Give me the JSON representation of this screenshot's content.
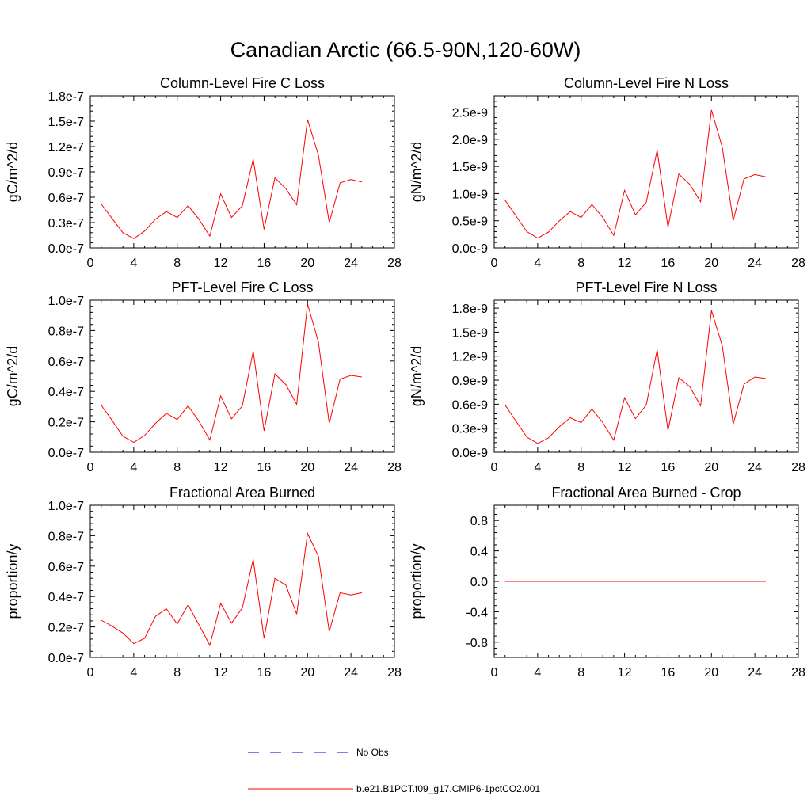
{
  "title": "Canadian Arctic (66.5-90N,120-60W)",
  "legend": {
    "entries": [
      {
        "label": "No Obs",
        "color": "#0000cc",
        "dashed": true
      },
      {
        "label": "b.e21.B1PCT.f09_g17.CMIP6-1pctCO2.001",
        "color": "#ff0000",
        "dashed": false
      }
    ]
  },
  "chart_data": [
    {
      "type": "line",
      "title": "Column-Level Fire C Loss",
      "ylabel": "gC/m^2/d",
      "xlim": [
        0,
        28
      ],
      "ylim": [
        0,
        1.8e-07
      ],
      "xticks": [
        0,
        4,
        8,
        12,
        16,
        20,
        24,
        28
      ],
      "xtick_labels": [
        "0",
        "4",
        "8",
        "12",
        "16",
        "20",
        "24",
        "28"
      ],
      "yticks": [
        0,
        3e-08,
        6e-08,
        9e-08,
        1.2e-07,
        1.5e-07,
        1.8e-07
      ],
      "ytick_labels": [
        "0.0e-7",
        "0.3e-7",
        "0.6e-7",
        "0.9e-7",
        "1.2e-7",
        "1.5e-7",
        "1.8e-7"
      ],
      "series": [
        {
          "name": "b.e21.B1PCT.f09_g17.CMIP6-1pctCO2.001",
          "color": "#ff0000",
          "x": [
            1,
            2,
            3,
            4,
            5,
            6,
            7,
            8,
            9,
            10,
            11,
            12,
            13,
            14,
            15,
            16,
            17,
            18,
            19,
            20,
            21,
            22,
            23,
            24,
            25
          ],
          "y": [
            5.2e-08,
            3.5e-08,
            1.8e-08,
            1.1e-08,
            2e-08,
            3.4e-08,
            4.3e-08,
            3.6e-08,
            5e-08,
            3.4e-08,
            1.4e-08,
            6.4e-08,
            3.6e-08,
            5e-08,
            1.05e-07,
            2.2e-08,
            8.3e-08,
            7e-08,
            5.1e-08,
            1.52e-07,
            1.1e-07,
            3e-08,
            7.7e-08,
            8.1e-08,
            7.8e-08
          ]
        }
      ]
    },
    {
      "type": "line",
      "title": "Column-Level Fire N Loss",
      "ylabel": "gN/m^2/d",
      "xlim": [
        0,
        28
      ],
      "ylim": [
        0,
        2.8e-09
      ],
      "xticks": [
        0,
        4,
        8,
        12,
        16,
        20,
        24,
        28
      ],
      "xtick_labels": [
        "0",
        "4",
        "8",
        "12",
        "16",
        "20",
        "24",
        "28"
      ],
      "yticks": [
        0,
        5e-10,
        1e-09,
        1.5e-09,
        2e-09,
        2.5e-09
      ],
      "ytick_labels": [
        "0.0e-9",
        "0.5e-9",
        "1.0e-9",
        "1.5e-9",
        "2.0e-9",
        "2.5e-9"
      ],
      "series": [
        {
          "name": "b.e21.B1PCT.f09_g17.CMIP6-1pctCO2.001",
          "color": "#ff0000",
          "x": [
            1,
            2,
            3,
            4,
            5,
            6,
            7,
            8,
            9,
            10,
            11,
            12,
            13,
            14,
            15,
            16,
            17,
            18,
            19,
            20,
            21,
            22,
            23,
            24,
            25
          ],
          "y": [
            8.8e-10,
            5.9e-10,
            3e-10,
            1.8e-10,
            2.9e-10,
            5e-10,
            6.7e-10,
            5.6e-10,
            8e-10,
            5.6e-10,
            2.3e-10,
            1.06e-09,
            6.1e-10,
            8.4e-10,
            1.8e-09,
            3.8e-10,
            1.36e-09,
            1.17e-09,
            8.5e-10,
            2.54e-09,
            1.85e-09,
            5e-10,
            1.27e-09,
            1.35e-09,
            1.31e-09
          ]
        }
      ]
    },
    {
      "type": "line",
      "title": "PFT-Level Fire C Loss",
      "ylabel": "gC/m^2/d",
      "xlim": [
        0,
        28
      ],
      "ylim": [
        0,
        1e-07
      ],
      "xticks": [
        0,
        4,
        8,
        12,
        16,
        20,
        24,
        28
      ],
      "xtick_labels": [
        "0",
        "4",
        "8",
        "12",
        "16",
        "20",
        "24",
        "28"
      ],
      "yticks": [
        0,
        2e-08,
        4e-08,
        6e-08,
        8e-08,
        1e-07
      ],
      "ytick_labels": [
        "0.0e-7",
        "0.2e-7",
        "0.4e-7",
        "0.6e-7",
        "0.8e-7",
        "1.0e-7"
      ],
      "series": [
        {
          "name": "b.e21.B1PCT.f09_g17.CMIP6-1pctCO2.001",
          "color": "#ff0000",
          "x": [
            1,
            2,
            3,
            4,
            5,
            6,
            7,
            8,
            9,
            10,
            11,
            12,
            13,
            14,
            15,
            16,
            17,
            18,
            19,
            20,
            21,
            22,
            23,
            24,
            25
          ],
          "y": [
            3.1e-08,
            2.1e-08,
            1.05e-08,
            6.5e-09,
            1.1e-08,
            1.9e-08,
            2.55e-08,
            2.15e-08,
            3.05e-08,
            2.05e-08,
            8e-09,
            3.7e-08,
            2.2e-08,
            3.05e-08,
            6.65e-08,
            1.4e-08,
            5.15e-08,
            4.45e-08,
            3.15e-08,
            9.75e-08,
            7.25e-08,
            1.9e-08,
            4.8e-08,
            5.05e-08,
            4.95e-08
          ]
        }
      ]
    },
    {
      "type": "line",
      "title": "PFT-Level Fire N Loss",
      "ylabel": "gN/m^2/d",
      "xlim": [
        0,
        28
      ],
      "ylim": [
        0,
        1.9e-09
      ],
      "xticks": [
        0,
        4,
        8,
        12,
        16,
        20,
        24,
        28
      ],
      "xtick_labels": [
        "0",
        "4",
        "8",
        "12",
        "16",
        "20",
        "24",
        "28"
      ],
      "yticks": [
        0,
        3e-10,
        6e-10,
        9e-10,
        1.2e-09,
        1.5e-09,
        1.8e-09
      ],
      "ytick_labels": [
        "0.0e-9",
        "0.3e-9",
        "0.6e-9",
        "0.9e-9",
        "1.2e-9",
        "1.5e-9",
        "1.8e-9"
      ],
      "series": [
        {
          "name": "b.e21.B1PCT.f09_g17.CMIP6-1pctCO2.001",
          "color": "#ff0000",
          "x": [
            1,
            2,
            3,
            4,
            5,
            6,
            7,
            8,
            9,
            10,
            11,
            12,
            13,
            14,
            15,
            16,
            17,
            18,
            19,
            20,
            21,
            22,
            23,
            24,
            25
          ],
          "y": [
            5.9e-10,
            3.9e-10,
            1.9e-10,
            1.1e-10,
            1.8e-10,
            3.2e-10,
            4.3e-10,
            3.7e-10,
            5.4e-10,
            3.7e-10,
            1.5e-10,
            6.8e-10,
            4.2e-10,
            5.9e-10,
            1.28e-09,
            2.7e-10,
            9.3e-10,
            8.2e-10,
            5.8e-10,
            1.77e-09,
            1.33e-09,
            3.5e-10,
            8.5e-10,
            9.4e-10,
            9.2e-10
          ]
        }
      ]
    },
    {
      "type": "line",
      "title": "Fractional Area Burned",
      "ylabel": "proportion/y",
      "xlim": [
        0,
        28
      ],
      "ylim": [
        0,
        1e-07
      ],
      "xticks": [
        0,
        4,
        8,
        12,
        16,
        20,
        24,
        28
      ],
      "xtick_labels": [
        "0",
        "4",
        "8",
        "12",
        "16",
        "20",
        "24",
        "28"
      ],
      "yticks": [
        0,
        2e-08,
        4e-08,
        6e-08,
        8e-08,
        1e-07
      ],
      "ytick_labels": [
        "0.0e-7",
        "0.2e-7",
        "0.4e-7",
        "0.6e-7",
        "0.8e-7",
        "1.0e-7"
      ],
      "series": [
        {
          "name": "b.e21.B1PCT.f09_g17.CMIP6-1pctCO2.001",
          "color": "#ff0000",
          "x": [
            1,
            2,
            3,
            4,
            5,
            6,
            7,
            8,
            9,
            10,
            11,
            12,
            13,
            14,
            15,
            16,
            17,
            18,
            19,
            20,
            21,
            22,
            23,
            24,
            25
          ],
          "y": [
            2.45e-08,
            2.05e-08,
            1.6e-08,
            9e-09,
            1.25e-08,
            2.7e-08,
            3.2e-08,
            2.2e-08,
            3.45e-08,
            2.15e-08,
            8e-09,
            3.55e-08,
            2.25e-08,
            3.25e-08,
            6.45e-08,
            1.25e-08,
            5.2e-08,
            4.75e-08,
            2.85e-08,
            8.15e-08,
            6.65e-08,
            1.7e-08,
            4.25e-08,
            4.1e-08,
            4.25e-08
          ]
        }
      ]
    },
    {
      "type": "line",
      "title": "Fractional Area Burned - Crop",
      "ylabel": "proportion/y",
      "xlim": [
        0,
        28
      ],
      "ylim": [
        -1.0,
        1.0
      ],
      "xticks": [
        0,
        4,
        8,
        12,
        16,
        20,
        24,
        28
      ],
      "xtick_labels": [
        "0",
        "4",
        "8",
        "12",
        "16",
        "20",
        "24",
        "28"
      ],
      "yticks": [
        -0.8,
        -0.4,
        0,
        0.4,
        0.8
      ],
      "ytick_labels": [
        "-0.8",
        "-0.4",
        "0.0",
        "0.4",
        "0.8"
      ],
      "series": [
        {
          "name": "b.e21.B1PCT.f09_g17.CMIP6-1pctCO2.001",
          "color": "#ff0000",
          "x": [
            1,
            2,
            3,
            4,
            5,
            6,
            7,
            8,
            9,
            10,
            11,
            12,
            13,
            14,
            15,
            16,
            17,
            18,
            19,
            20,
            21,
            22,
            23,
            24,
            25
          ],
          "y": [
            0,
            0,
            0,
            0,
            0,
            0,
            0,
            0,
            0,
            0,
            0,
            0,
            0,
            0,
            0,
            0,
            0,
            0,
            0,
            0,
            0,
            0,
            0,
            0,
            0
          ]
        }
      ]
    }
  ]
}
